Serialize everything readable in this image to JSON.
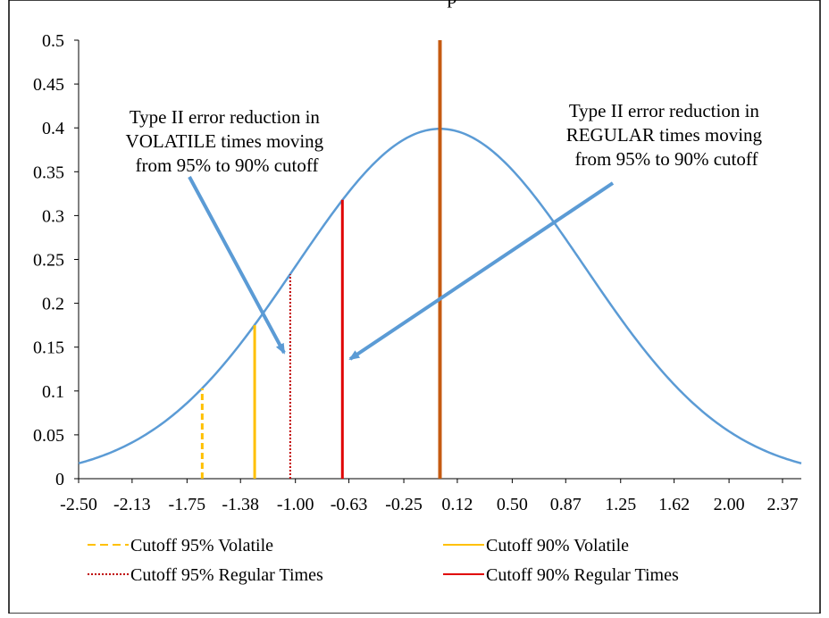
{
  "chart_data": {
    "type": "line",
    "title_fragment": "p",
    "xlabel": "",
    "ylabel": "",
    "xlim": [
      -2.5,
      2.5
    ],
    "ylim": [
      0,
      0.5
    ],
    "y_ticks": [
      "0",
      "0.05",
      "0.1",
      "0.15",
      "0.2",
      "0.25",
      "0.3",
      "0.35",
      "0.4",
      "0.45",
      "0.5"
    ],
    "x_ticks": [
      {
        "value": -2.5,
        "label": "-2.50"
      },
      {
        "value": -2.13,
        "label": "-2.13"
      },
      {
        "value": -1.75,
        "label": "-1.75"
      },
      {
        "value": -1.38,
        "label": "-1.38"
      },
      {
        "value": -1.0,
        "label": "-1.00"
      },
      {
        "value": -0.63,
        "label": "-0.63"
      },
      {
        "value": -0.25,
        "label": "-0.25"
      },
      {
        "value": 0.12,
        "label": "0.12"
      },
      {
        "value": 0.5,
        "label": "0.50"
      },
      {
        "value": 0.87,
        "label": "0.87"
      },
      {
        "value": 1.25,
        "label": "1.25"
      },
      {
        "value": 1.62,
        "label": "1.62"
      },
      {
        "value": 2.0,
        "label": "2.00"
      },
      {
        "value": 2.37,
        "label": "2.37"
      }
    ],
    "grid": false,
    "series": [
      {
        "kind": "curve",
        "description": "standard normal density",
        "mean": 0,
        "sd": 1,
        "color": "#5b9bd5"
      }
    ],
    "vlines": [
      {
        "name": "Cutoff 95% Volatile",
        "x": -1.645,
        "y": 0.103,
        "color": "#ffc000",
        "style": "dashed"
      },
      {
        "name": "Cutoff 90% Volatile",
        "x": -1.282,
        "y": 0.175,
        "color": "#ffc000",
        "style": "solid"
      },
      {
        "name": "Cutoff 95% Regular Times",
        "x": -1.036,
        "y": 0.233,
        "color": "#c00000",
        "style": "dotted"
      },
      {
        "name": "Cutoff 90% Regular Times",
        "x": -0.675,
        "y": 0.318,
        "color": "#e00000",
        "style": "solid"
      },
      {
        "name": "",
        "x": 0.0,
        "y": 0.5,
        "color": "#c55a11",
        "style": "solid"
      }
    ],
    "annotations": [
      {
        "lines": [
          "Type II error reduction in",
          "VOLATILE times moving",
          "from 95% to 90% cutoff"
        ]
      },
      {
        "lines": [
          "Type II error reduction in",
          "REGULAR times moving",
          "from 95% to 90% cutoff"
        ]
      }
    ],
    "legend": {
      "placement": "bottom",
      "entries": [
        {
          "label": "Cutoff 95% Volatile",
          "color": "#ffc000",
          "style": "dashed"
        },
        {
          "label": "Cutoff 90% Volatile",
          "color": "#ffc000",
          "style": "solid"
        },
        {
          "label": "Cutoff 95% Regular Times",
          "color": "#c00000",
          "style": "dotted"
        },
        {
          "label": "Cutoff 90% Regular Times",
          "color": "#e00000",
          "style": "solid"
        }
      ]
    }
  }
}
